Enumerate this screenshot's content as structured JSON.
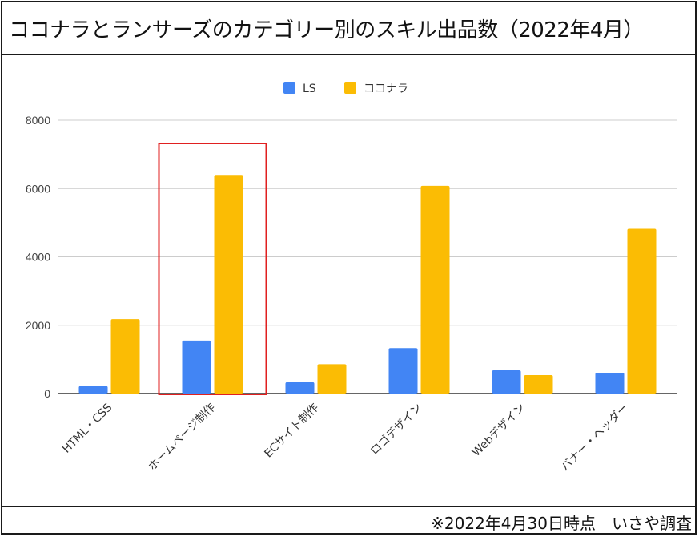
{
  "title": "ココナラとランサーズのカテゴリー別のスキル出品数（2022年4月）",
  "footer": "※2022年4月30日時点　いさや調査",
  "chart_data": {
    "type": "bar",
    "categories": [
      "HTML・CSS",
      "ホームページ制作",
      "ECサイト制作",
      "ロゴデザイン",
      "Webデザイン",
      "バナー・ヘッダー"
    ],
    "series": [
      {
        "name": "LS",
        "color": "#4285f4",
        "values": [
          220,
          1550,
          330,
          1330,
          680,
          610
        ]
      },
      {
        "name": "ココナラ",
        "color": "#fbbc04",
        "values": [
          2180,
          6400,
          860,
          6080,
          540,
          4820
        ]
      }
    ],
    "ylim": [
      0,
      8000
    ],
    "yticks": [
      0,
      2000,
      4000,
      6000,
      8000
    ],
    "grid": true,
    "legend": "top-center",
    "highlight": {
      "category": "ホームページ制作",
      "color": "#e02020"
    }
  }
}
